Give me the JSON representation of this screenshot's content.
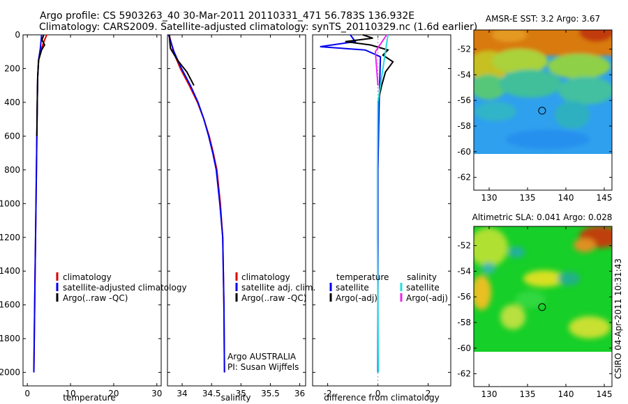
{
  "title": {
    "line1": "Argo profile: CS 5903263_40 30-Mar-2011 20110331_471 56.783S 136.932E",
    "line2": "Climatology: CARS2009. Satellite-adjusted climatology: synTS_20110329.nc (1.6d earlier)"
  },
  "watermark": "CSIRO 04-Apr-2011 10:31:43",
  "colors": {
    "climatology": "#dd0000",
    "satellite": "#0000ee",
    "argo": "#000000",
    "sat_salinity": "#22dddd",
    "argo_adj_salinity": "#ee22ee"
  },
  "chart_data": [
    {
      "type": "line",
      "name": "temperature-profile",
      "xlabel": "temperature",
      "ylabel": "",
      "xlim": [
        -1,
        31
      ],
      "ylim": [
        2080,
        0
      ],
      "xticks": [
        0,
        10,
        20,
        30
      ],
      "yticks": [
        0,
        200,
        400,
        600,
        800,
        1000,
        1200,
        1400,
        1600,
        1800,
        2000
      ],
      "series": [
        {
          "name": "climatology",
          "color": "#dd0000",
          "x": [
            4.5,
            4.0,
            3.3,
            2.6,
            2.4,
            2.3,
            2.2,
            2.1,
            2.0,
            1.8,
            1.6,
            1.5
          ],
          "y": [
            0,
            30,
            80,
            150,
            250,
            400,
            600,
            800,
            1000,
            1400,
            1800,
            2000
          ]
        },
        {
          "name": "satellite-adjusted climatology",
          "color": "#0000ee",
          "x": [
            3.3,
            3.2,
            3.0,
            2.6,
            2.4,
            2.3,
            2.2,
            2.1,
            2.0,
            1.8,
            1.6,
            1.5
          ],
          "y": [
            0,
            30,
            80,
            150,
            250,
            400,
            600,
            800,
            1000,
            1400,
            1800,
            2000
          ]
        },
        {
          "name": "Argo(..raw -QC)",
          "color": "#000000",
          "x": [
            3.8,
            3.4,
            4.0,
            3.3,
            2.6,
            2.4,
            2.3,
            2.2
          ],
          "y": [
            0,
            30,
            60,
            90,
            150,
            250,
            400,
            600
          ]
        }
      ],
      "legend": {
        "labels": [
          "climatology",
          "satellite-adjusted climatology",
          "Argo(..raw -QC)"
        ]
      }
    },
    {
      "type": "line",
      "name": "salinity-profile",
      "xlabel": "salinity",
      "xlim": [
        33.75,
        36.1
      ],
      "ylim": [
        2080,
        0
      ],
      "xticks": [
        34,
        34.5,
        35,
        35.5,
        36
      ],
      "series": [
        {
          "name": "climatology",
          "color": "#dd0000",
          "x": [
            33.78,
            33.85,
            33.97,
            34.12,
            34.26,
            34.37,
            34.46,
            34.53,
            34.59,
            34.65,
            34.69,
            34.71,
            34.72
          ],
          "y": [
            0,
            100,
            200,
            300,
            400,
            500,
            600,
            700,
            800,
            1000,
            1200,
            1600,
            2000
          ]
        },
        {
          "name": "satellite adj. clim.",
          "color": "#0000ee",
          "x": [
            33.77,
            33.86,
            33.99,
            34.14,
            34.27,
            34.37,
            34.45,
            34.52,
            34.58,
            34.64,
            34.69,
            34.71,
            34.72
          ],
          "y": [
            0,
            100,
            200,
            300,
            400,
            500,
            600,
            700,
            800,
            1000,
            1200,
            1600,
            2000
          ]
        },
        {
          "name": "Argo(..raw -QC)",
          "color": "#000000",
          "x": [
            33.78,
            33.8,
            33.92,
            34.08,
            34.2
          ],
          "y": [
            0,
            80,
            150,
            220,
            300
          ]
        }
      ],
      "legend": {
        "labels": [
          "climatology",
          "satellite adj. clim.",
          "Argo(..raw -QC)"
        ]
      },
      "annotation": {
        "line1": "Argo AUSTRALIA",
        "line2": "PI: Susan Wijffels"
      }
    },
    {
      "type": "line",
      "name": "difference-profile",
      "xlabel": "difference from climatology",
      "xlim": [
        -2.6,
        2.9
      ],
      "ylim": [
        2080,
        0
      ],
      "xticks": [
        -2,
        0,
        2
      ],
      "series": [
        {
          "name": "temperature satellite",
          "color": "#0000ee",
          "x": [
            -1.1,
            -0.9,
            -2.3,
            -0.5,
            0.1,
            0.05,
            0.0,
            0.0,
            0.0,
            0.0
          ],
          "y": [
            0,
            40,
            70,
            90,
            130,
            400,
            800,
            1200,
            1600,
            2000
          ]
        },
        {
          "name": "temperature Argo(-adj)",
          "color": "#000000",
          "x": [
            -0.6,
            -0.2,
            -1.3,
            -0.3,
            0.4,
            0.2,
            0.6,
            0.3,
            0.15,
            0.0
          ],
          "y": [
            0,
            20,
            40,
            60,
            90,
            120,
            160,
            220,
            300,
            400
          ]
        },
        {
          "name": "salinity satellite",
          "color": "#22dddd",
          "x": [
            0.4,
            0.3,
            0.0,
            -0.02,
            -0.02,
            0.0,
            0.02
          ],
          "y": [
            0,
            100,
            400,
            800,
            1200,
            1600,
            2000
          ]
        },
        {
          "name": "salinity Argo(-adj)",
          "color": "#ee22ee",
          "x": [
            0.35,
            -0.1,
            -0.05,
            0.0
          ],
          "y": [
            0,
            100,
            200,
            300
          ]
        }
      ],
      "legend": {
        "temperature_header": "temperature",
        "salinity_header": "salinity",
        "labels": [
          "satellite",
          "Argo(-adj)",
          "satellite",
          "Argo(-adj)"
        ]
      }
    },
    {
      "type": "heatmap",
      "name": "sst-map",
      "title": "AMSR-E SST: 3.2 Argo: 3.67",
      "xlim": [
        128,
        146
      ],
      "ylim": [
        -63,
        -50.5
      ],
      "xticks": [
        130,
        135,
        140,
        145
      ],
      "yticks": [
        -52,
        -54,
        -56,
        -58,
        -60,
        -62
      ],
      "no_data_below": -60,
      "marker": {
        "lon": 136.9,
        "lat": -56.8
      }
    },
    {
      "type": "heatmap",
      "name": "sla-map",
      "title": "Altimetric SLA: 0.041 Argo: 0.028",
      "xlim": [
        128,
        146
      ],
      "ylim": [
        -63,
        -50.5
      ],
      "xticks": [
        130,
        135,
        140,
        145
      ],
      "yticks": [
        -52,
        -54,
        -56,
        -58,
        -60,
        -62
      ],
      "no_data_below": -60,
      "marker": {
        "lon": 136.9,
        "lat": -56.8
      }
    }
  ]
}
